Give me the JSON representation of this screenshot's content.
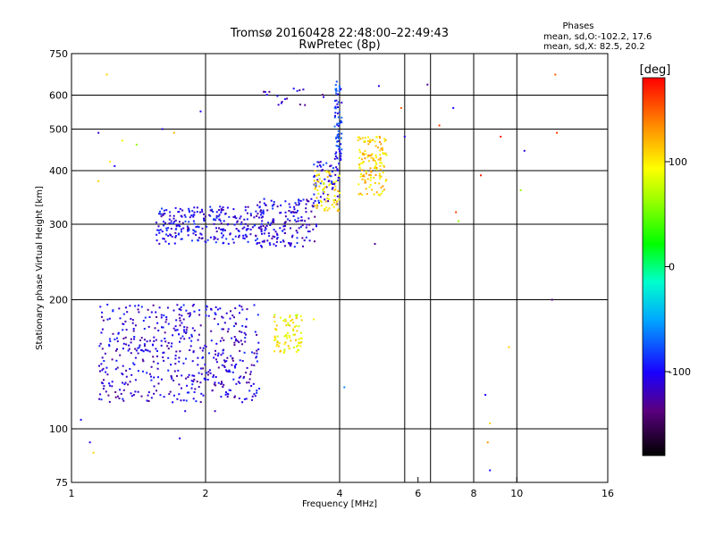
{
  "title": "Tromsø 20160428 22:48:00–22:49:43",
  "subtitle": "RwPretec (8p)",
  "phases_box": {
    "heading": "Phases",
    "line_o": "mean, sd,O:-102.2, 17.6",
    "line_x": "mean, sd,X:  82.5, 20.2"
  },
  "colorbar": {
    "unit_label": "[deg]",
    "tick_labels": [
      "100",
      "0",
      "-100"
    ],
    "tick_values": [
      100,
      0,
      -100
    ],
    "range": [
      -180,
      180
    ]
  },
  "chart_data": {
    "type": "scatter",
    "title": "Tromsø 20160428 22:48:00–22:49:43",
    "subtitle": "RwPretec (8p)",
    "xlabel": "Frequency [MHz]",
    "ylabel": "Stationary phase Virtual Height [km]",
    "x_scale": "log",
    "y_scale": "log",
    "xlim": [
      1,
      16
    ],
    "ylim": [
      75,
      750
    ],
    "x_ticks": [
      1,
      2,
      4,
      6,
      8,
      10,
      16
    ],
    "x_tick_labels": [
      "1",
      "2",
      "4",
      "6",
      "8",
      "10",
      "16"
    ],
    "y_ticks": [
      75,
      100,
      200,
      300,
      400,
      500,
      600,
      750
    ],
    "y_tick_labels": [
      "75",
      "100",
      "200",
      "300",
      "400",
      "500",
      "600",
      "750"
    ],
    "x_grid": [
      2,
      4,
      5.6,
      6.4,
      8,
      10
    ],
    "y_grid": [
      100,
      200,
      300,
      400,
      500,
      600
    ],
    "grid": true,
    "color_variable": "phase [deg]",
    "clusters": [
      {
        "x_range": [
          1.15,
          2.65
        ],
        "y_range": [
          115,
          195
        ],
        "phase": -110,
        "count": 520
      },
      {
        "x_range": [
          1.55,
          2.7
        ],
        "y_range": [
          270,
          330
        ],
        "phase": -105,
        "count": 260
      },
      {
        "x_range": [
          2.6,
          3.55
        ],
        "y_range": [
          265,
          345
        ],
        "phase": -108,
        "count": 160
      },
      {
        "x_range": [
          3.5,
          4.0
        ],
        "y_range": [
          330,
          420
        ],
        "phase": -100,
        "count": 60
      },
      {
        "x_range": [
          3.9,
          4.05
        ],
        "y_range": [
          420,
          650
        ],
        "phase": -90,
        "count": 70
      },
      {
        "x_range": [
          2.7,
          3.7
        ],
        "y_range": [
          560,
          640
        ],
        "phase": -115,
        "count": 18
      },
      {
        "x_range": [
          2.85,
          3.3
        ],
        "y_range": [
          150,
          185
        ],
        "phase": 95,
        "count": 80
      },
      {
        "x_range": [
          3.5,
          4.0
        ],
        "y_range": [
          320,
          400
        ],
        "phase": 100,
        "count": 70
      },
      {
        "x_range": [
          4.4,
          5.1
        ],
        "y_range": [
          350,
          480
        ],
        "phase": 110,
        "count": 140
      }
    ],
    "scattered_points": [
      {
        "x": 1.05,
        "y": 105,
        "phase": -100
      },
      {
        "x": 1.1,
        "y": 93,
        "phase": -110
      },
      {
        "x": 1.12,
        "y": 88,
        "phase": 110
      },
      {
        "x": 1.15,
        "y": 490,
        "phase": -120
      },
      {
        "x": 1.2,
        "y": 670,
        "phase": 110
      },
      {
        "x": 1.22,
        "y": 420,
        "phase": 100
      },
      {
        "x": 1.25,
        "y": 410,
        "phase": -100
      },
      {
        "x": 1.3,
        "y": 470,
        "phase": 90
      },
      {
        "x": 1.4,
        "y": 460,
        "phase": 60
      },
      {
        "x": 1.6,
        "y": 500,
        "phase": -110
      },
      {
        "x": 1.7,
        "y": 490,
        "phase": 120
      },
      {
        "x": 1.75,
        "y": 95,
        "phase": -110
      },
      {
        "x": 1.8,
        "y": 110,
        "phase": -110
      },
      {
        "x": 1.95,
        "y": 550,
        "phase": -100
      },
      {
        "x": 2.1,
        "y": 110,
        "phase": -120
      },
      {
        "x": 4.9,
        "y": 630,
        "phase": -110
      },
      {
        "x": 5.5,
        "y": 560,
        "phase": 150
      },
      {
        "x": 5.6,
        "y": 480,
        "phase": -110
      },
      {
        "x": 6.3,
        "y": 635,
        "phase": -130
      },
      {
        "x": 6.7,
        "y": 510,
        "phase": 160
      },
      {
        "x": 7.2,
        "y": 560,
        "phase": -100
      },
      {
        "x": 7.3,
        "y": 320,
        "phase": 160
      },
      {
        "x": 7.4,
        "y": 305,
        "phase": 60
      },
      {
        "x": 8.3,
        "y": 390,
        "phase": 170
      },
      {
        "x": 8.5,
        "y": 120,
        "phase": -100
      },
      {
        "x": 8.7,
        "y": 80,
        "phase": -100
      },
      {
        "x": 8.7,
        "y": 103,
        "phase": 110
      },
      {
        "x": 8.6,
        "y": 93,
        "phase": 130
      },
      {
        "x": 9.2,
        "y": 480,
        "phase": 170
      },
      {
        "x": 9.6,
        "y": 155,
        "phase": 110
      },
      {
        "x": 10.2,
        "y": 360,
        "phase": 60
      },
      {
        "x": 10.4,
        "y": 445,
        "phase": -110
      },
      {
        "x": 12.2,
        "y": 670,
        "phase": 150
      },
      {
        "x": 12.0,
        "y": 200,
        "phase": -140
      },
      {
        "x": 12.3,
        "y": 490,
        "phase": 160
      },
      {
        "x": 4.1,
        "y": 125,
        "phase": -60
      },
      {
        "x": 3.5,
        "y": 180,
        "phase": 100
      },
      {
        "x": 4.8,
        "y": 270,
        "phase": -130
      },
      {
        "x": 1.15,
        "y": 378,
        "phase": 110
      }
    ]
  }
}
